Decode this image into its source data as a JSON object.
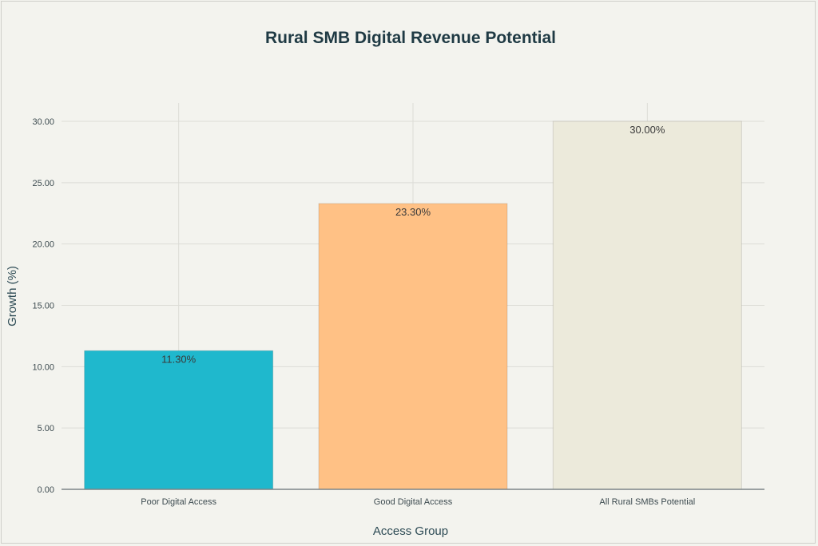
{
  "chart_data": {
    "type": "bar",
    "title": "Rural SMB Digital Revenue Potential",
    "xlabel": "Access Group",
    "ylabel": "Growth (%)",
    "categories": [
      "Poor Digital Access",
      "Good Digital Access",
      "All Rural SMBs Potential"
    ],
    "values": [
      11.3,
      23.3,
      30.0
    ],
    "data_labels": [
      "11.30%",
      "23.30%",
      "30.00%"
    ],
    "colors": [
      "#1fb8cd",
      "#ffc185",
      "#eceadb"
    ],
    "ylim": [
      0,
      30
    ],
    "yticks": [
      "0.00",
      "5.00",
      "10.00",
      "15.00",
      "20.00",
      "25.00",
      "30.00"
    ],
    "ytick_values": [
      0,
      5,
      10,
      15,
      20,
      25,
      30
    ],
    "grid": true,
    "legend": "none"
  }
}
